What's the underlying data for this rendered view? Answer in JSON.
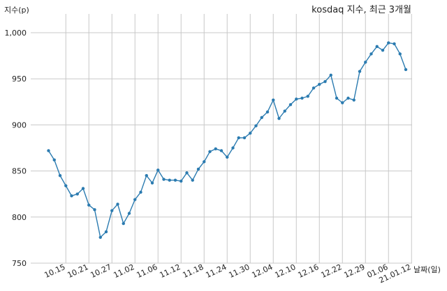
{
  "chart_data": {
    "type": "line",
    "title": "kosdaq 지수, 최근 3개월",
    "ylabel": "지수(p)",
    "xlabel": "날짜(일)",
    "ylim": [
      750,
      1010
    ],
    "yticks": [
      750,
      800,
      850,
      900,
      950,
      1000
    ],
    "ytick_labels": [
      "750",
      "800",
      "850",
      "900",
      "950",
      "1,000"
    ],
    "xtick_labels": [
      "10.15",
      "10.21",
      "10.27",
      "11.02",
      "11.06",
      "11.12",
      "11.18",
      "11.24",
      "11.30",
      "12.04",
      "12.10",
      "12.16",
      "12.22",
      "12.29",
      "01.06",
      "21.01.12"
    ],
    "xtick_index": [
      3,
      7,
      11,
      15,
      19,
      23,
      27,
      31,
      35,
      39,
      43,
      47,
      51,
      55,
      59,
      63
    ],
    "grid": true,
    "series": [
      {
        "color": "#2b7bb0",
        "values": [
          872,
          862,
          845,
          834,
          823,
          825,
          831,
          813,
          808,
          778,
          784,
          807,
          814,
          793,
          804,
          819,
          827,
          845,
          837,
          851,
          841,
          840,
          840,
          839,
          848,
          840,
          852,
          860,
          871,
          874,
          872,
          865,
          875,
          886,
          886,
          891,
          899,
          908,
          914,
          927,
          907,
          915,
          922,
          928,
          929,
          931,
          940,
          944,
          947,
          954,
          929,
          924,
          929,
          927,
          958,
          968,
          977,
          985,
          981,
          989,
          988,
          977,
          960
        ]
      }
    ]
  }
}
